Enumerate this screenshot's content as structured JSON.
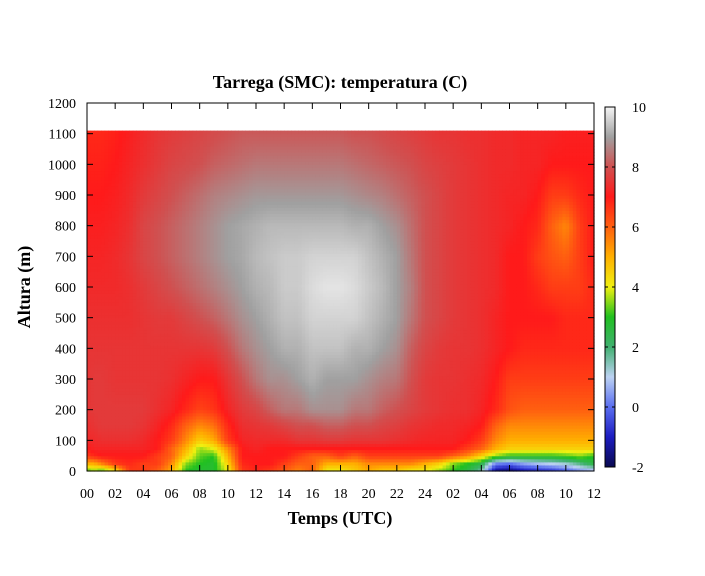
{
  "chart_data": {
    "type": "heatmap",
    "title": "Tarrega (SMC): temperatura (C)",
    "xlabel": "Temps (UTC)",
    "ylabel": "Altura (m)",
    "x_tick_labels": [
      "00",
      "02",
      "04",
      "06",
      "08",
      "10",
      "12",
      "14",
      "16",
      "18",
      "20",
      "22",
      "24",
      "02",
      "04",
      "06",
      "08",
      "10",
      "12"
    ],
    "x_range_hours": [
      0,
      36
    ],
    "y_ticks": [
      0,
      100,
      200,
      300,
      400,
      500,
      600,
      700,
      800,
      900,
      1000,
      1100,
      1200
    ],
    "ylim": [
      0,
      1200
    ],
    "data_top_m": 1110,
    "colorbar": {
      "range": [
        -2,
        10
      ],
      "ticks": [
        -2,
        0,
        2,
        4,
        6,
        8,
        10
      ],
      "palette": [
        {
          "v": -2,
          "color": "#0a0a50"
        },
        {
          "v": -1,
          "color": "#1c1cc0"
        },
        {
          "v": 0,
          "color": "#5a6ef0"
        },
        {
          "v": 1,
          "color": "#bcd2f2"
        },
        {
          "v": 2,
          "color": "#40b070"
        },
        {
          "v": 3,
          "color": "#20c020"
        },
        {
          "v": 4,
          "color": "#f0f010"
        },
        {
          "v": 5,
          "color": "#ffb000"
        },
        {
          "v": 6,
          "color": "#ff6010"
        },
        {
          "v": 7,
          "color": "#ff1a1a"
        },
        {
          "v": 8,
          "color": "#d05050"
        },
        {
          "v": 9,
          "color": "#a0a0a0"
        },
        {
          "v": 10,
          "color": "#f5f5f5"
        }
      ]
    },
    "grid_heights_m": [
      0,
      25,
      50,
      75,
      100,
      150,
      200,
      300,
      400,
      500,
      600,
      700,
      800,
      900,
      1000,
      1110
    ],
    "grid_times_h": [
      0,
      0.5,
      1,
      2,
      3,
      4,
      5,
      6,
      7,
      8,
      9,
      10,
      11,
      12,
      13,
      14,
      15,
      16,
      17,
      18,
      19,
      20,
      21,
      22,
      23,
      24,
      25,
      26,
      27,
      28,
      29,
      30,
      31,
      32,
      33,
      34,
      35,
      36
    ],
    "temperature_c": [
      [
        3.0,
        3.5,
        3.0,
        4.0,
        6.5,
        6.5,
        6.0,
        5.0,
        3.0,
        2.7,
        2.8,
        4.0,
        6.5,
        6.8,
        6.5,
        6.0,
        5.5,
        6.0,
        4.0,
        4.0,
        4.5,
        5.0,
        4.5,
        4.5,
        4.0,
        4.0,
        3.5,
        3.0,
        2.5,
        1.5,
        -1.5,
        -1.8,
        -1.2,
        -1.0,
        -0.8,
        -0.3,
        0.2,
        0.5
      ],
      [
        5.0,
        5.0,
        5.5,
        6.5,
        6.8,
        6.5,
        6.5,
        5.5,
        3.5,
        3.0,
        2.8,
        4.5,
        6.8,
        7.0,
        7.0,
        6.5,
        6.0,
        6.0,
        5.0,
        5.0,
        5.0,
        5.5,
        5.5,
        5.5,
        5.5,
        5.0,
        4.5,
        3.5,
        3.0,
        2.5,
        0.2,
        0.0,
        0.5,
        0.8,
        1.0,
        1.2,
        1.8,
        2.5
      ],
      [
        6.5,
        6.8,
        7.0,
        7.0,
        7.0,
        7.0,
        6.5,
        6.0,
        4.5,
        3.3,
        3.0,
        5.0,
        7.0,
        7.0,
        7.0,
        7.0,
        6.5,
        6.0,
        6.0,
        6.5,
        6.0,
        6.5,
        6.5,
        6.5,
        6.5,
        6.5,
        6.5,
        6.0,
        5.5,
        4.5,
        3.5,
        3.0,
        3.0,
        3.0,
        3.0,
        3.2,
        3.5,
        3.0
      ],
      [
        7.0,
        7.2,
        7.2,
        7.2,
        7.2,
        7.2,
        7.0,
        6.0,
        5.0,
        3.6,
        4.0,
        5.5,
        7.0,
        7.2,
        7.0,
        7.0,
        7.0,
        7.0,
        7.0,
        7.0,
        7.0,
        7.0,
        7.0,
        7.0,
        7.0,
        7.0,
        7.0,
        7.0,
        6.5,
        6.0,
        5.0,
        4.5,
        4.5,
        4.5,
        4.5,
        4.5,
        4.5,
        4.5
      ],
      [
        7.3,
        7.3,
        7.4,
        7.4,
        7.4,
        7.3,
        7.0,
        6.5,
        5.5,
        4.5,
        5.0,
        6.5,
        7.2,
        7.3,
        7.3,
        7.3,
        7.5,
        7.5,
        7.6,
        7.6,
        7.5,
        7.5,
        7.5,
        7.4,
        7.3,
        7.2,
        7.2,
        7.2,
        7.0,
        6.5,
        5.5,
        5.0,
        5.0,
        5.0,
        5.0,
        5.0,
        5.0,
        5.0
      ],
      [
        7.4,
        7.5,
        7.6,
        7.6,
        7.6,
        7.5,
        7.2,
        6.8,
        6.0,
        5.5,
        5.8,
        6.8,
        7.4,
        7.5,
        7.6,
        7.8,
        8.0,
        8.0,
        8.2,
        8.2,
        8.0,
        8.0,
        7.8,
        7.7,
        7.5,
        7.4,
        7.3,
        7.3,
        7.2,
        7.0,
        6.0,
        5.5,
        5.5,
        5.5,
        5.5,
        5.5,
        5.5,
        5.5
      ],
      [
        7.5,
        7.6,
        7.6,
        7.6,
        7.6,
        7.6,
        7.4,
        7.2,
        6.8,
        6.4,
        6.6,
        7.2,
        7.6,
        7.8,
        8.2,
        8.5,
        8.5,
        8.8,
        8.8,
        8.8,
        8.5,
        8.5,
        8.2,
        8.0,
        7.8,
        7.6,
        7.5,
        7.4,
        7.4,
        7.2,
        6.8,
        6.2,
        6.0,
        6.0,
        6.0,
        6.0,
        6.0,
        6.0
      ],
      [
        7.5,
        7.6,
        7.6,
        7.5,
        7.5,
        7.5,
        7.5,
        7.4,
        7.2,
        7.0,
        7.0,
        7.5,
        8.0,
        8.5,
        8.8,
        8.8,
        9.0,
        9.2,
        9.0,
        9.0,
        9.0,
        8.8,
        8.6,
        8.5,
        8.0,
        7.6,
        7.5,
        7.5,
        7.4,
        7.3,
        7.0,
        6.5,
        6.5,
        6.5,
        6.5,
        6.5,
        6.5,
        6.5
      ],
      [
        7.5,
        7.5,
        7.5,
        7.5,
        7.5,
        7.5,
        7.5,
        7.5,
        7.5,
        7.5,
        7.6,
        8.0,
        8.5,
        8.8,
        9.0,
        9.2,
        9.2,
        9.4,
        9.4,
        9.4,
        9.2,
        9.2,
        9.0,
        8.8,
        8.2,
        7.8,
        7.6,
        7.5,
        7.5,
        7.4,
        7.2,
        7.0,
        6.8,
        6.8,
        6.8,
        6.8,
        6.8,
        6.8
      ],
      [
        7.4,
        7.4,
        7.4,
        7.4,
        7.4,
        7.5,
        7.6,
        7.6,
        7.8,
        8.0,
        8.2,
        8.5,
        8.8,
        9.0,
        9.2,
        9.4,
        9.4,
        9.6,
        9.6,
        9.6,
        9.6,
        9.4,
        9.2,
        9.0,
        8.5,
        8.0,
        7.8,
        7.6,
        7.5,
        7.4,
        7.2,
        7.0,
        7.0,
        7.0,
        7.0,
        6.8,
        6.8,
        6.8
      ],
      [
        7.3,
        7.3,
        7.3,
        7.3,
        7.4,
        7.6,
        7.8,
        8.0,
        8.2,
        8.4,
        8.6,
        8.8,
        9.0,
        9.2,
        9.3,
        9.5,
        9.5,
        9.7,
        9.8,
        9.8,
        9.7,
        9.5,
        9.3,
        9.0,
        8.6,
        8.0,
        7.8,
        7.6,
        7.5,
        7.4,
        7.3,
        7.0,
        7.0,
        6.8,
        6.5,
        6.5,
        6.5,
        6.8
      ],
      [
        7.2,
        7.2,
        7.2,
        7.3,
        7.5,
        7.8,
        8.0,
        8.2,
        8.4,
        8.6,
        8.8,
        9.0,
        9.1,
        9.3,
        9.4,
        9.5,
        9.5,
        9.6,
        9.6,
        9.6,
        9.6,
        9.4,
        9.2,
        9.0,
        8.5,
        8.0,
        7.8,
        7.6,
        7.5,
        7.4,
        7.3,
        7.0,
        7.0,
        6.5,
        6.2,
        6.0,
        6.5,
        7.0
      ],
      [
        7.1,
        7.1,
        7.1,
        7.2,
        7.4,
        7.8,
        8.0,
        8.2,
        8.4,
        8.6,
        8.8,
        9.0,
        9.1,
        9.2,
        9.3,
        9.3,
        9.3,
        9.3,
        9.3,
        9.3,
        9.2,
        9.2,
        9.0,
        8.8,
        8.4,
        8.0,
        7.8,
        7.6,
        7.5,
        7.4,
        7.3,
        7.2,
        7.0,
        6.8,
        6.0,
        5.5,
        6.5,
        7.0
      ],
      [
        7.0,
        7.0,
        7.0,
        7.1,
        7.3,
        7.6,
        7.8,
        8.0,
        8.2,
        8.4,
        8.6,
        8.7,
        8.8,
        8.9,
        8.9,
        8.9,
        8.9,
        8.9,
        8.9,
        8.9,
        8.8,
        8.7,
        8.6,
        8.4,
        8.2,
        8.0,
        7.8,
        7.6,
        7.5,
        7.4,
        7.3,
        7.2,
        7.2,
        7.0,
        6.5,
        6.5,
        6.8,
        7.0
      ],
      [
        6.9,
        6.9,
        6.9,
        7.0,
        7.2,
        7.4,
        7.6,
        7.8,
        7.9,
        8.0,
        8.2,
        8.3,
        8.4,
        8.5,
        8.5,
        8.5,
        8.5,
        8.5,
        8.5,
        8.5,
        8.4,
        8.3,
        8.2,
        8.1,
        8.0,
        7.8,
        7.7,
        7.6,
        7.5,
        7.4,
        7.3,
        7.3,
        7.2,
        7.2,
        7.0,
        7.0,
        7.0,
        7.0
      ],
      [
        6.8,
        6.8,
        6.8,
        6.9,
        7.1,
        7.3,
        7.5,
        7.6,
        7.7,
        7.8,
        7.9,
        8.0,
        8.1,
        8.1,
        8.1,
        8.1,
        8.1,
        8.1,
        8.1,
        8.1,
        8.0,
        8.0,
        7.9,
        7.8,
        7.7,
        7.6,
        7.5,
        7.5,
        7.4,
        7.4,
        7.3,
        7.3,
        7.2,
        7.2,
        7.2,
        7.1,
        7.1,
        7.1
      ]
    ]
  }
}
